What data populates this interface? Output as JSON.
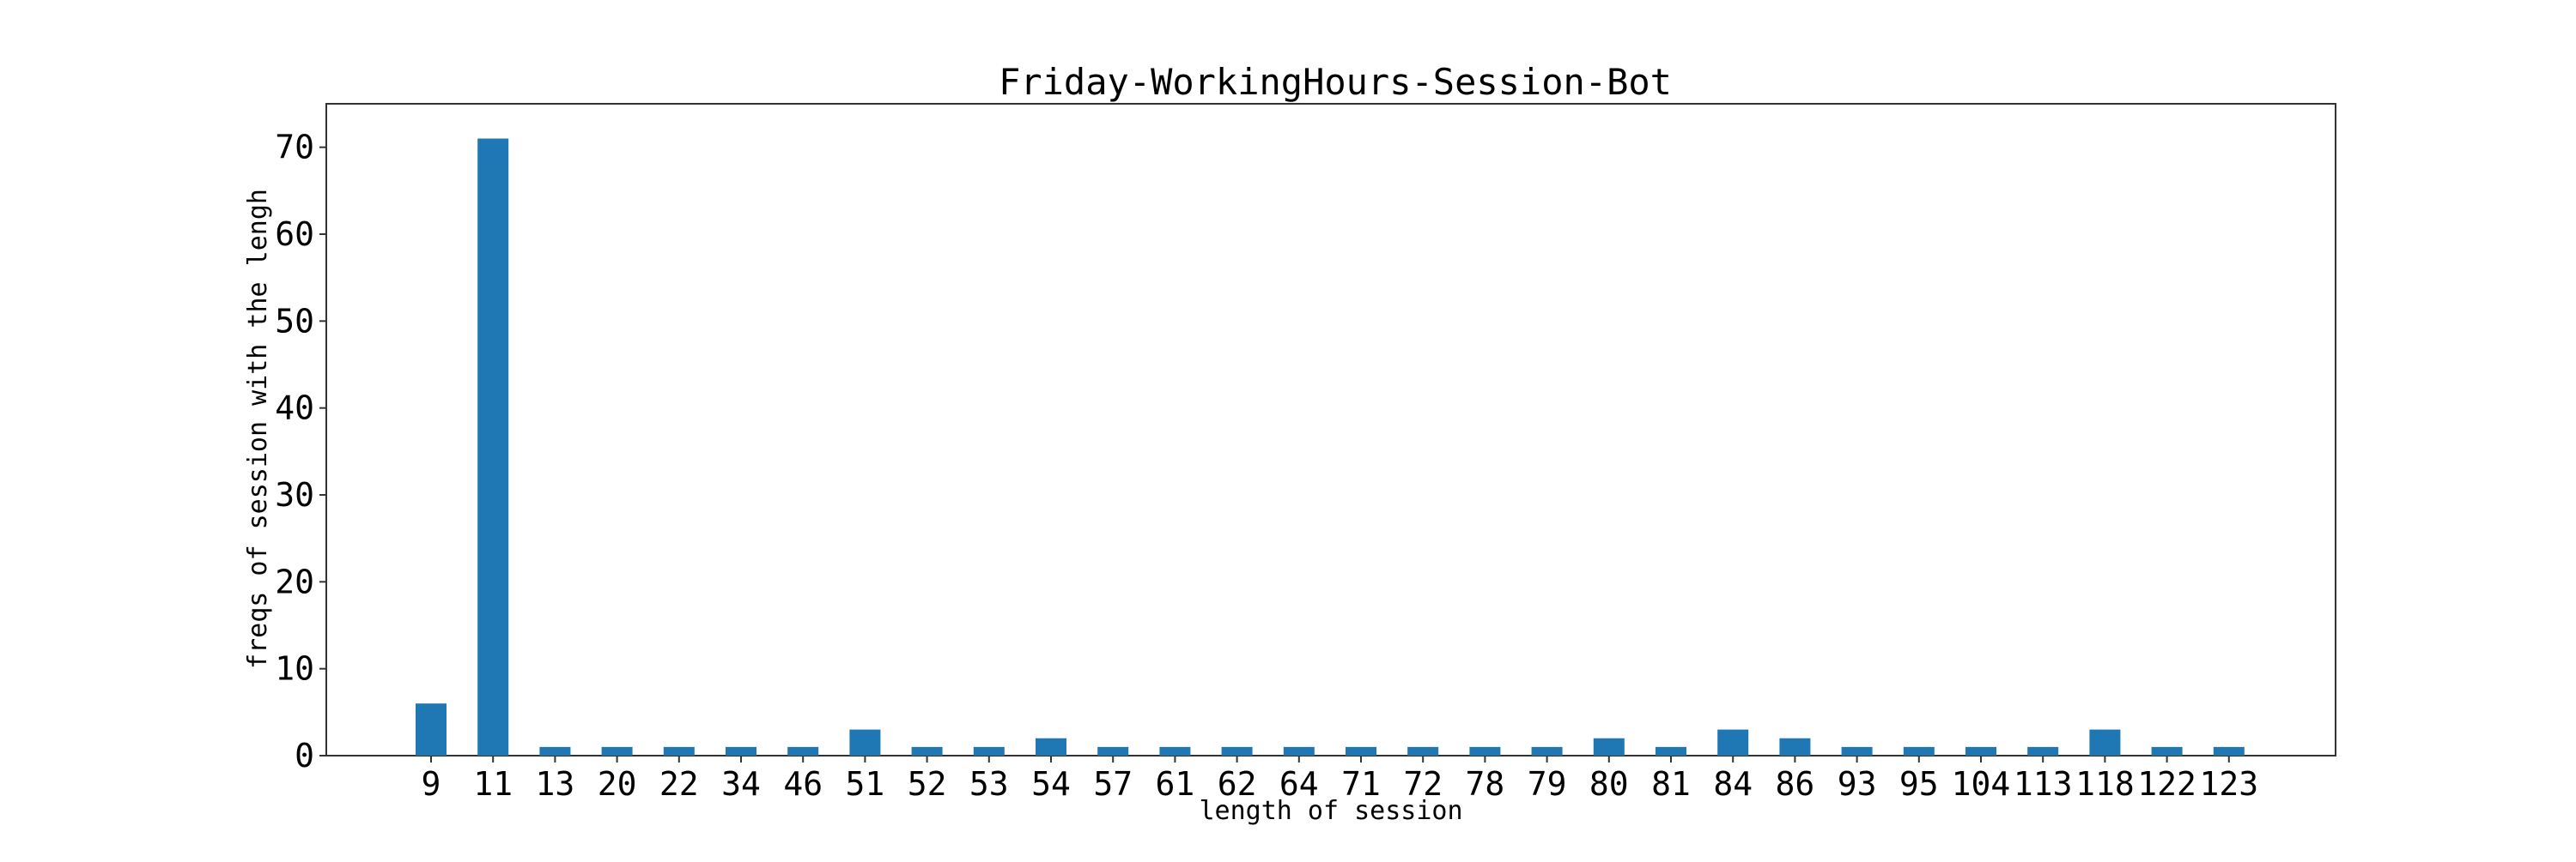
{
  "chart_data": {
    "type": "bar",
    "title": "Friday-WorkingHours-Session-Bot",
    "xlabel": "length of session",
    "ylabel": "freqs of session with the lengh",
    "categories": [
      "9",
      "11",
      "13",
      "20",
      "22",
      "34",
      "46",
      "51",
      "52",
      "53",
      "54",
      "57",
      "61",
      "62",
      "64",
      "71",
      "72",
      "78",
      "79",
      "80",
      "81",
      "84",
      "86",
      "93",
      "95",
      "104",
      "113",
      "118",
      "122",
      "123"
    ],
    "values": [
      6,
      71,
      1,
      1,
      1,
      1,
      1,
      3,
      1,
      1,
      2,
      1,
      1,
      1,
      1,
      1,
      1,
      1,
      1,
      2,
      1,
      3,
      2,
      1,
      1,
      1,
      1,
      3,
      1,
      1
    ],
    "ylim": [
      0,
      75
    ],
    "yticks": [
      0,
      10,
      20,
      30,
      40,
      50,
      60,
      70
    ],
    "grid": false,
    "legend": "none",
    "bar_color": "#1f77b4",
    "axis_color": "#333333"
  }
}
